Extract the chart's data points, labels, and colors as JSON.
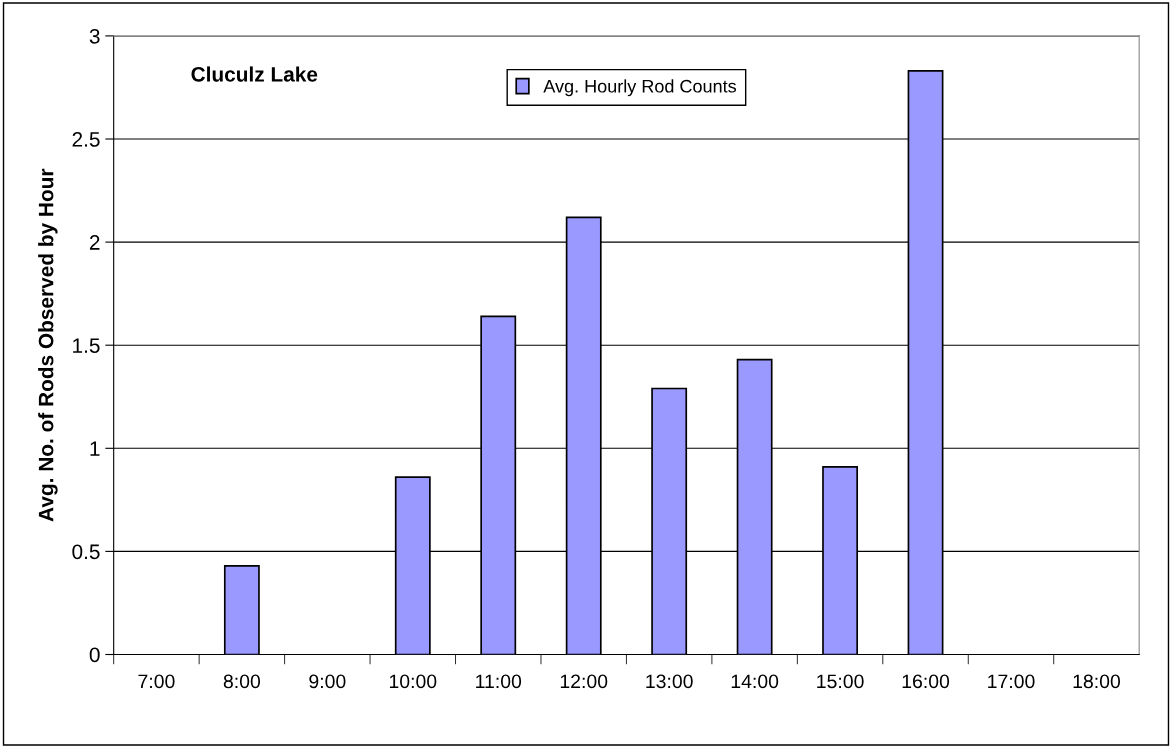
{
  "chart_data": {
    "type": "bar",
    "title": "Cluculz Lake",
    "ylabel": "Avg. No. of Rods Observed by Hour",
    "categories": [
      "7:00",
      "8:00",
      "9:00",
      "10:00",
      "11:00",
      "12:00",
      "13:00",
      "14:00",
      "15:00",
      "16:00",
      "17:00",
      "18:00"
    ],
    "series": [
      {
        "name": "Avg. Hourly Rod Counts",
        "color": "#9999ff",
        "values": [
          null,
          0.43,
          null,
          0.86,
          1.64,
          2.12,
          1.29,
          1.43,
          0.91,
          2.83,
          null,
          null
        ]
      }
    ],
    "ylim": [
      0,
      3
    ],
    "yticks": [
      0,
      0.5,
      1,
      1.5,
      2,
      2.5,
      3
    ],
    "grid": "y",
    "legend": "top"
  }
}
